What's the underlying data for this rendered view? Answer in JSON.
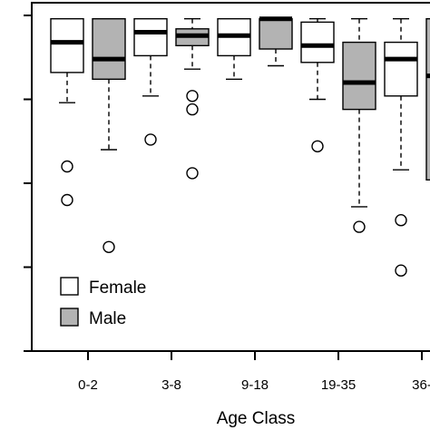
{
  "chart_data": {
    "type": "boxplot",
    "title": "",
    "xlabel": "Age Class",
    "ylabel": "",
    "ylim": [
      0,
      1
    ],
    "yticks": [
      0.0,
      0.25,
      0.5,
      0.75,
      1.0
    ],
    "ytick_labels_visible": false,
    "categories": [
      "0-2",
      "3-8",
      "9-18",
      "19-35",
      "36-"
    ],
    "legend": {
      "placement": "bottom-left",
      "entries": [
        {
          "label": "Female",
          "color": "#ffffff"
        },
        {
          "label": "Male",
          "color": "#b3b3b3"
        }
      ]
    },
    "series": [
      {
        "name": "Female",
        "color": "#ffffff",
        "boxes": [
          {
            "category": "0-2",
            "whisker_low": 0.74,
            "q1": 0.83,
            "median": 0.92,
            "q3": 0.99,
            "whisker_high": 0.99,
            "outliers": [
              0.55,
              0.45
            ]
          },
          {
            "category": "3-8",
            "whisker_low": 0.76,
            "q1": 0.88,
            "median": 0.95,
            "q3": 0.99,
            "whisker_high": 0.99,
            "outliers": [
              0.63
            ]
          },
          {
            "category": "9-18",
            "whisker_low": 0.81,
            "q1": 0.88,
            "median": 0.94,
            "q3": 0.99,
            "whisker_high": 0.99,
            "outliers": []
          },
          {
            "category": "19-35",
            "whisker_low": 0.75,
            "q1": 0.86,
            "median": 0.91,
            "q3": 0.98,
            "whisker_high": 0.99,
            "outliers": [
              0.61
            ]
          },
          {
            "category": "36-",
            "whisker_low": 0.54,
            "q1": 0.76,
            "median": 0.87,
            "q3": 0.92,
            "whisker_high": 0.99,
            "outliers": [
              0.39,
              0.24
            ]
          }
        ]
      },
      {
        "name": "Male",
        "color": "#b3b3b3",
        "boxes": [
          {
            "category": "0-2",
            "whisker_low": 0.6,
            "q1": 0.81,
            "median": 0.87,
            "q3": 0.99,
            "whisker_high": 0.99,
            "outliers": [
              0.31
            ]
          },
          {
            "category": "3-8",
            "whisker_low": 0.84,
            "q1": 0.91,
            "median": 0.94,
            "q3": 0.96,
            "whisker_high": 0.99,
            "outliers": [
              0.76,
              0.72,
              0.53
            ]
          },
          {
            "category": "9-18",
            "whisker_low": 0.85,
            "q1": 0.9,
            "median": 0.99,
            "q3": 0.99,
            "whisker_high": 0.99,
            "outliers": []
          },
          {
            "category": "19-35",
            "whisker_low": 0.43,
            "q1": 0.72,
            "median": 0.8,
            "q3": 0.92,
            "whisker_high": 0.99,
            "outliers": [
              0.37
            ]
          },
          {
            "category": "36-",
            "whisker_low": 0.51,
            "q1": 0.51,
            "median": 0.82,
            "q3": 0.99,
            "whisker_high": 0.99,
            "outliers": []
          }
        ]
      }
    ]
  }
}
